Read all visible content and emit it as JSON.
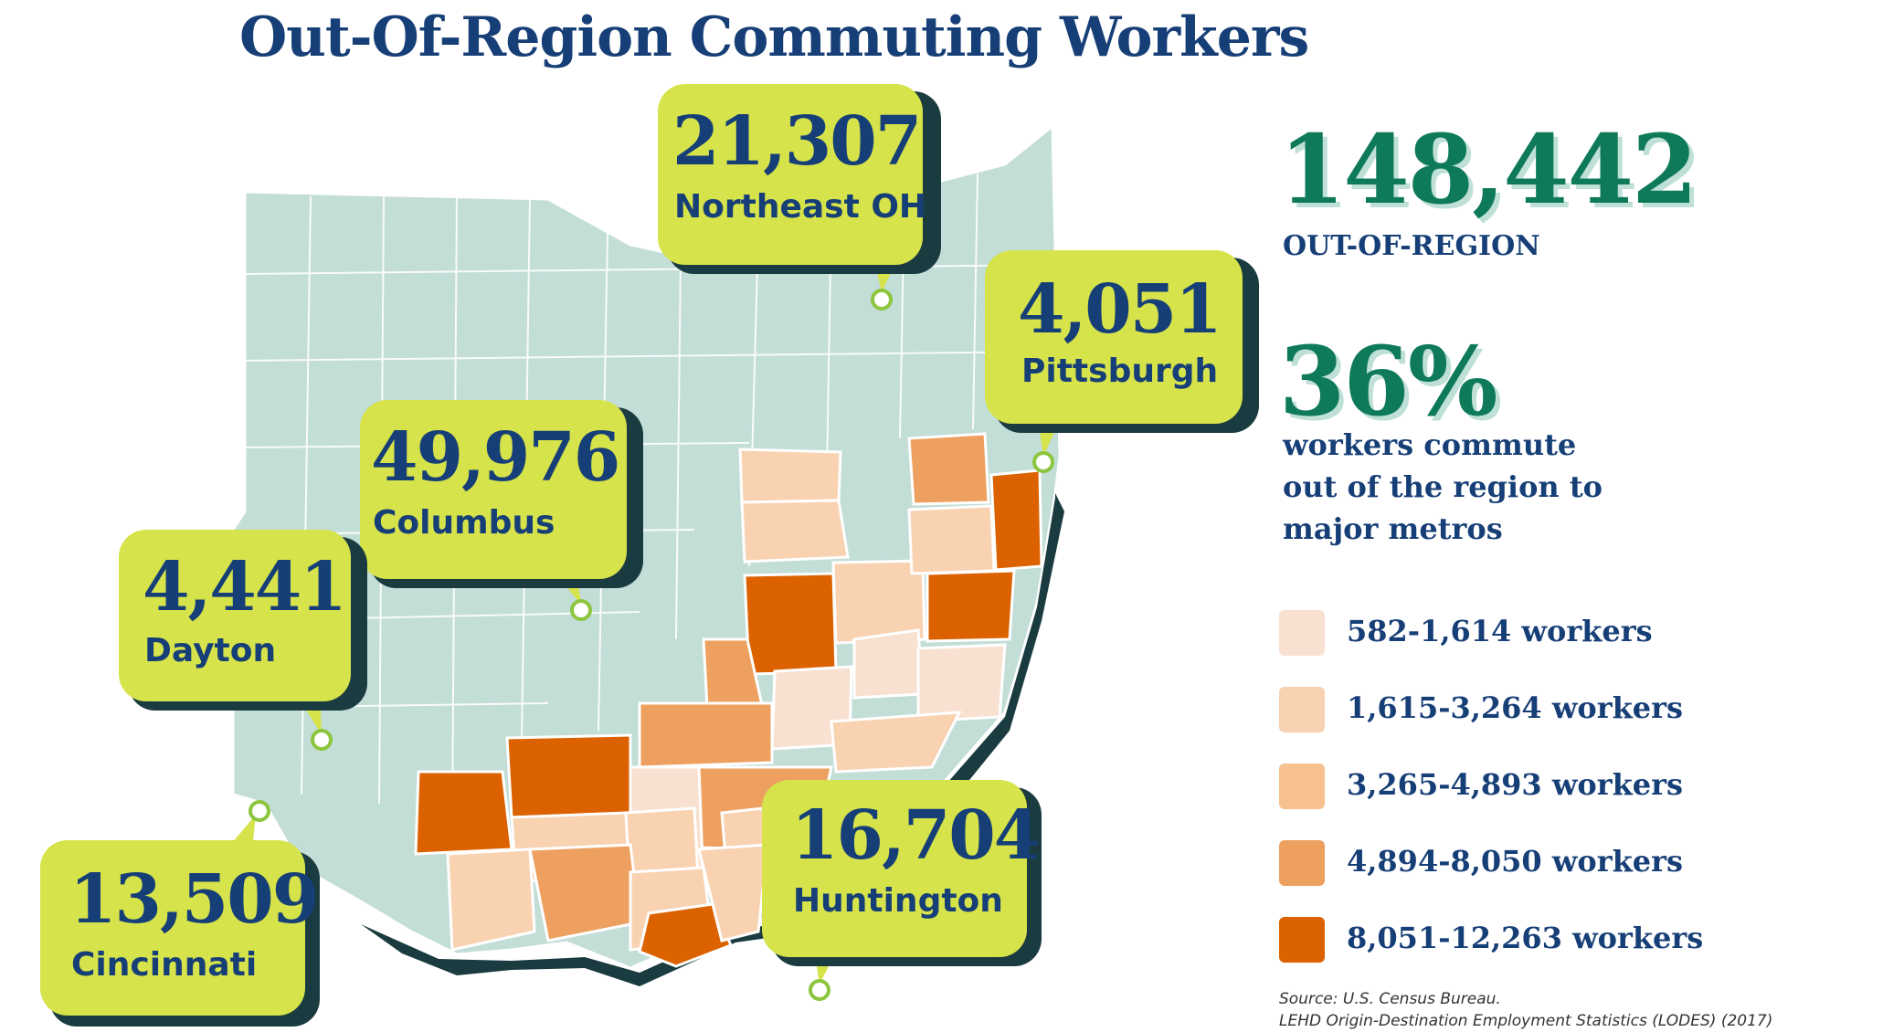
{
  "title": "Out-Of-Region Commuting  Workers",
  "stats": {
    "total_value": "148,442",
    "total_label": "OUT-OF-REGION",
    "percent_value": "36%",
    "percent_lines": [
      "workers commute",
      "out of the region to",
      "major metros"
    ]
  },
  "callouts": [
    {
      "value": "21,307",
      "city": "Northeast OH"
    },
    {
      "value": "4,051",
      "city": "Pittsburgh"
    },
    {
      "value": "49,976",
      "city": "Columbus"
    },
    {
      "value": "4,441",
      "city": "Dayton"
    },
    {
      "value": "13,509",
      "city": "Cincinnati"
    },
    {
      "value": "16,704",
      "city": "Huntington"
    }
  ],
  "legend": [
    {
      "label": "582-1,614 workers",
      "color": "#f8e1d1"
    },
    {
      "label": "1,615-3,264 workers",
      "color": "#f9d2b1"
    },
    {
      "label": "3,265-4,893 workers",
      "color": "#f7c290"
    },
    {
      "label": "4,894-8,050 workers",
      "color": "#eda05f"
    },
    {
      "label": "8,051-12,263 workers",
      "color": "#dc6200"
    }
  ],
  "colors": {
    "state_fill": "#c3ddd7",
    "county_line": "#ffffff",
    "shadow": "#1a3b3f",
    "callout_fill": "#d6e34b",
    "title": "#173f77",
    "accent_green": "#0e7a5a"
  },
  "source": {
    "line1": "Source: U.S. Census Bureau.",
    "line2": " LEHD Origin-Destination Employment Statistics (LODES) (2017)"
  }
}
